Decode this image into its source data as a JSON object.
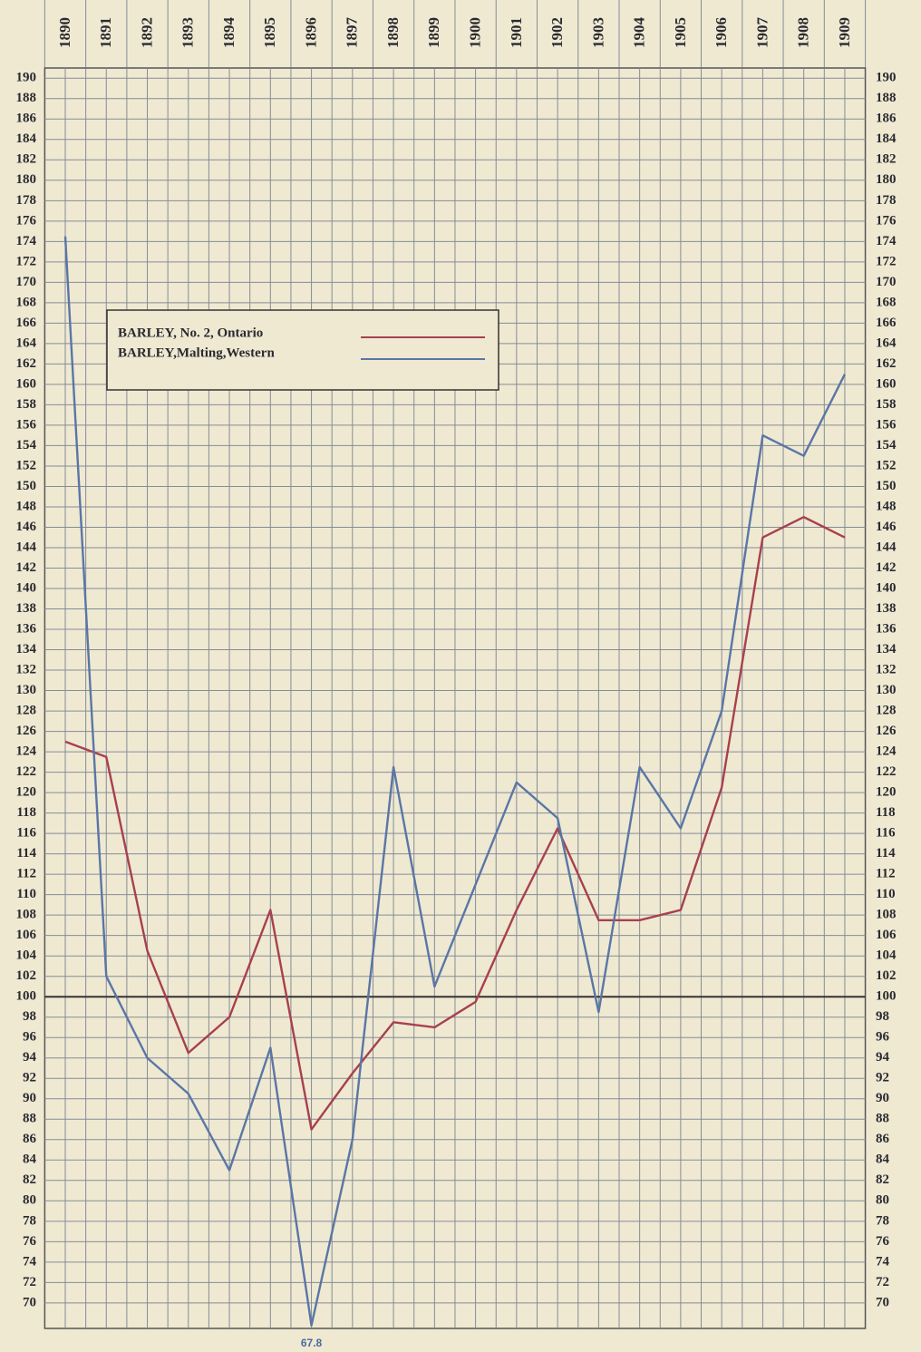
{
  "chart_data": {
    "type": "line",
    "categories": [
      "1890",
      "1891",
      "1892",
      "1893",
      "1894",
      "1895",
      "1896",
      "1897",
      "1898",
      "1899",
      "1900",
      "1901",
      "1902",
      "1903",
      "1904",
      "1905",
      "1906",
      "1907",
      "1908",
      "1909"
    ],
    "series": [
      {
        "name": "BARLEY, No. 2, Ontario",
        "color": "#a8404e",
        "values": [
          125,
          123.5,
          104.5,
          94.5,
          98,
          108.5,
          87,
          92.5,
          97.5,
          97,
          99.5,
          108.5,
          116.5,
          107.5,
          107.5,
          108.5,
          120.5,
          145,
          147,
          145
        ]
      },
      {
        "name": "BARLEY,Malting,Western",
        "color": "#5a76a6",
        "values": [
          174.5,
          102,
          94,
          90.5,
          83,
          95,
          67.8,
          86,
          122.5,
          101,
          111,
          121,
          117.5,
          98.5,
          122.5,
          116.5,
          128,
          155,
          153,
          161
        ]
      }
    ],
    "annotation": "67.8",
    "ylim": [
      67.5,
      191
    ],
    "yticks": [
      70,
      72,
      74,
      76,
      78,
      80,
      82,
      84,
      86,
      88,
      90,
      92,
      94,
      96,
      98,
      100,
      102,
      104,
      106,
      108,
      110,
      112,
      114,
      116,
      118,
      120,
      122,
      124,
      126,
      128,
      130,
      132,
      134,
      136,
      138,
      140,
      142,
      144,
      146,
      148,
      150,
      152,
      154,
      156,
      158,
      160,
      162,
      164,
      166,
      168,
      170,
      172,
      174,
      176,
      178,
      180,
      182,
      184,
      186,
      188,
      190
    ],
    "highlight_y": 100,
    "grid": true
  }
}
